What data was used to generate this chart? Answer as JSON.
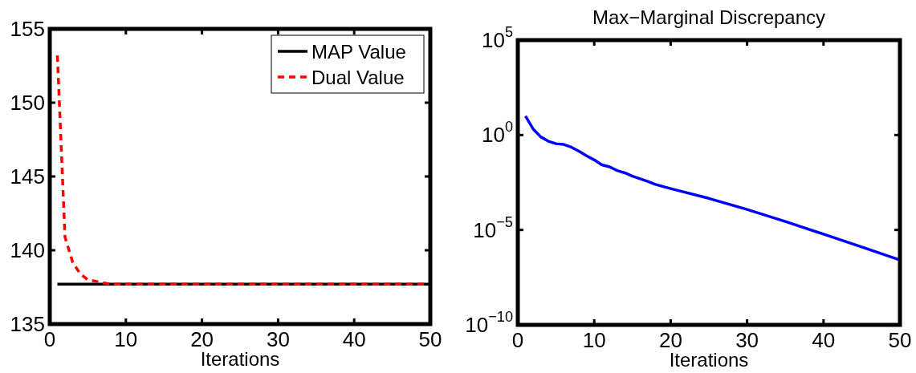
{
  "chart_data": [
    {
      "type": "line",
      "xlabel": "Iterations",
      "xlim": [
        0,
        50
      ],
      "xticks": [
        0,
        10,
        20,
        30,
        40,
        50
      ],
      "ylim": [
        135,
        155
      ],
      "yticks": [
        135,
        140,
        145,
        150,
        155
      ],
      "legend": "top right",
      "grid": false,
      "marker": "none",
      "series": [
        {
          "name": "MAP Value",
          "color": "#000000",
          "line_style": "solid",
          "x": [
            1,
            50
          ],
          "values": [
            137.7,
            137.7
          ]
        },
        {
          "name": "Dual Value",
          "color": "#ff0000",
          "line_style": "dashed",
          "x": [
            1,
            2,
            3,
            4,
            5,
            6,
            7,
            8,
            50
          ],
          "values": [
            153.2,
            140.9,
            139.2,
            138.4,
            138.0,
            137.9,
            137.8,
            137.7,
            137.7
          ]
        }
      ]
    },
    {
      "type": "line",
      "title": "Max−Marginal Discrepancy",
      "xlabel": "Iterations",
      "xlim": [
        0,
        50
      ],
      "xticks": [
        0,
        10,
        20,
        30,
        40,
        50
      ],
      "ylim": [
        1e-10,
        100000
      ],
      "log": "y",
      "yticks": [
        {
          "value": 1e-10,
          "label": "10$^{−10}$"
        },
        {
          "value": 1e-05,
          "label": "10$^{−5}$"
        },
        {
          "value": 1,
          "label": "10$^{0}$"
        },
        {
          "value": 100000,
          "label": "10$^{5}$"
        }
      ],
      "grid": false,
      "legend": false,
      "marker": "none",
      "series": [
        {
          "color": "#0000ff",
          "line_style": "solid",
          "x": [
            1,
            2,
            3,
            4,
            5,
            6,
            7,
            8,
            9,
            10,
            11,
            12,
            13,
            14,
            15,
            17,
            18,
            20,
            25,
            30,
            35,
            40,
            45,
            50
          ],
          "values": [
            10,
            2.1,
            0.8,
            0.47,
            0.35,
            0.32,
            0.23,
            0.14,
            0.08,
            0.049,
            0.027,
            0.021,
            0.0135,
            0.0102,
            0.0068,
            0.0036,
            0.0025,
            0.0015,
            0.00046,
            0.00012,
            2.8e-05,
            6e-06,
            1.26e-06,
            2.6e-07
          ]
        }
      ]
    }
  ]
}
